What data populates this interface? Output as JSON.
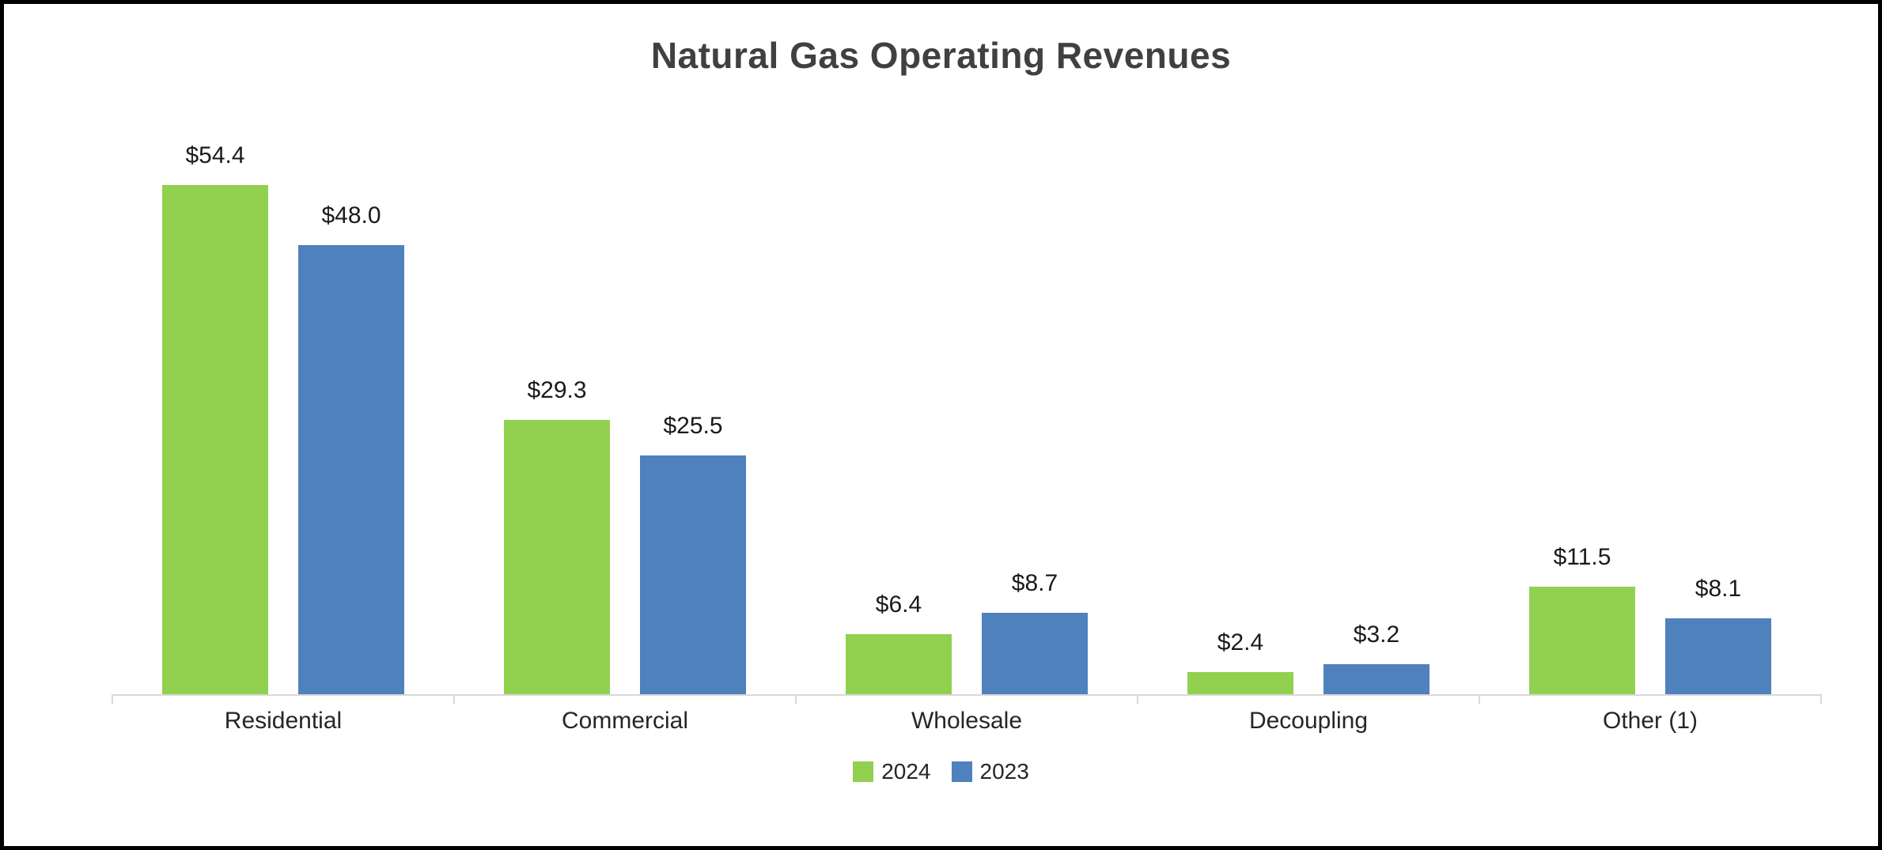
{
  "chart_data": {
    "type": "bar",
    "title": "Natural Gas Operating Revenues",
    "categories": [
      "Residential",
      "Commercial",
      "Wholesale",
      "Decoupling",
      "Other (1)"
    ],
    "series": [
      {
        "name": "2024",
        "color": "#92D050",
        "values": [
          54.4,
          29.3,
          6.4,
          2.4,
          11.5
        ]
      },
      {
        "name": "2023",
        "color": "#4F81BD",
        "values": [
          48.0,
          25.5,
          8.7,
          3.2,
          8.1
        ]
      }
    ],
    "data_labels": [
      [
        "$54.4",
        "$29.3",
        "$6.4",
        "$2.4",
        "$11.5"
      ],
      [
        "$48.0",
        "$25.5",
        "$8.7",
        "$3.2",
        "$8.1"
      ]
    ],
    "ylim": [
      0,
      60
    ],
    "xlabel": "",
    "ylabel": "",
    "grid": false,
    "legend_position": "bottom"
  }
}
